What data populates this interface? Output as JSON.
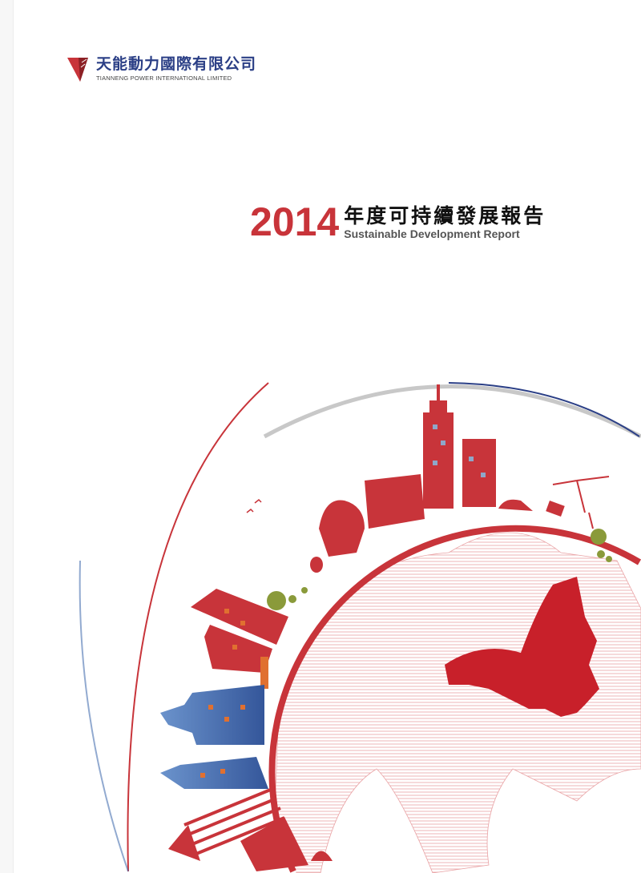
{
  "company": {
    "name_cn": "天能動力國際有限公司",
    "name_en": "TIANNENG POWER INTERNATIONAL LIMITED"
  },
  "report": {
    "year": "2014",
    "title_cn": "年度可持續發展報告",
    "title_en": "Sustainable Development Report"
  },
  "colors": {
    "brand_red": "#c8343a",
    "brand_blue": "#2b3f86",
    "building_blue": "#4a72b0",
    "tree_green": "#8a9a3a"
  },
  "illustration": {
    "subject": "globe-with-city-skyline",
    "highlighted_region": "china"
  }
}
